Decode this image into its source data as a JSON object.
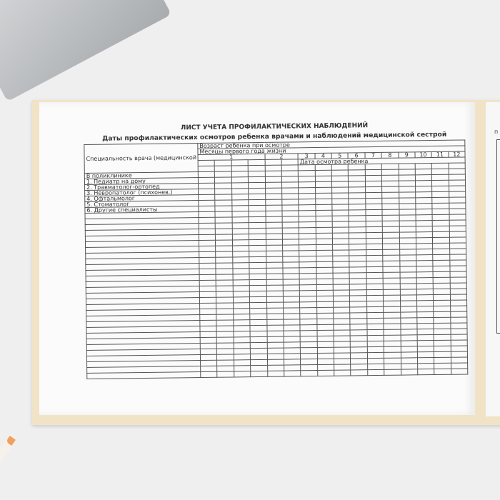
{
  "form": {
    "title": "ЛИСТ УЧЕТА ПРОФИЛАКТИЧЕСКИХ НАБЛЮДЕНИЙ",
    "subtitle": "Даты профилактических осмотров ребенка врачами и наблюдений медицинской сестрой",
    "specialty_header": "Специальность врача (медицинской сестры)",
    "age_header": "Возраст ребенка при осмотре",
    "months_header": "Месяцы первого года жизни",
    "months": [
      "1",
      "2",
      "3",
      "4",
      "5",
      "6",
      "7",
      "8",
      "9",
      "10",
      "11",
      "12"
    ],
    "date_header": "Дата осмотра ребенка",
    "rows": [
      "В поликлинике",
      "1. Педиатр на дому",
      "2. Травматолог-ортопед",
      "3. Невропатолог (психонев.)",
      "4. Офтальмолог",
      "5. Стоматолог",
      "6. Другие специалисты"
    ]
  },
  "right_page": {
    "partial_text": "п"
  }
}
